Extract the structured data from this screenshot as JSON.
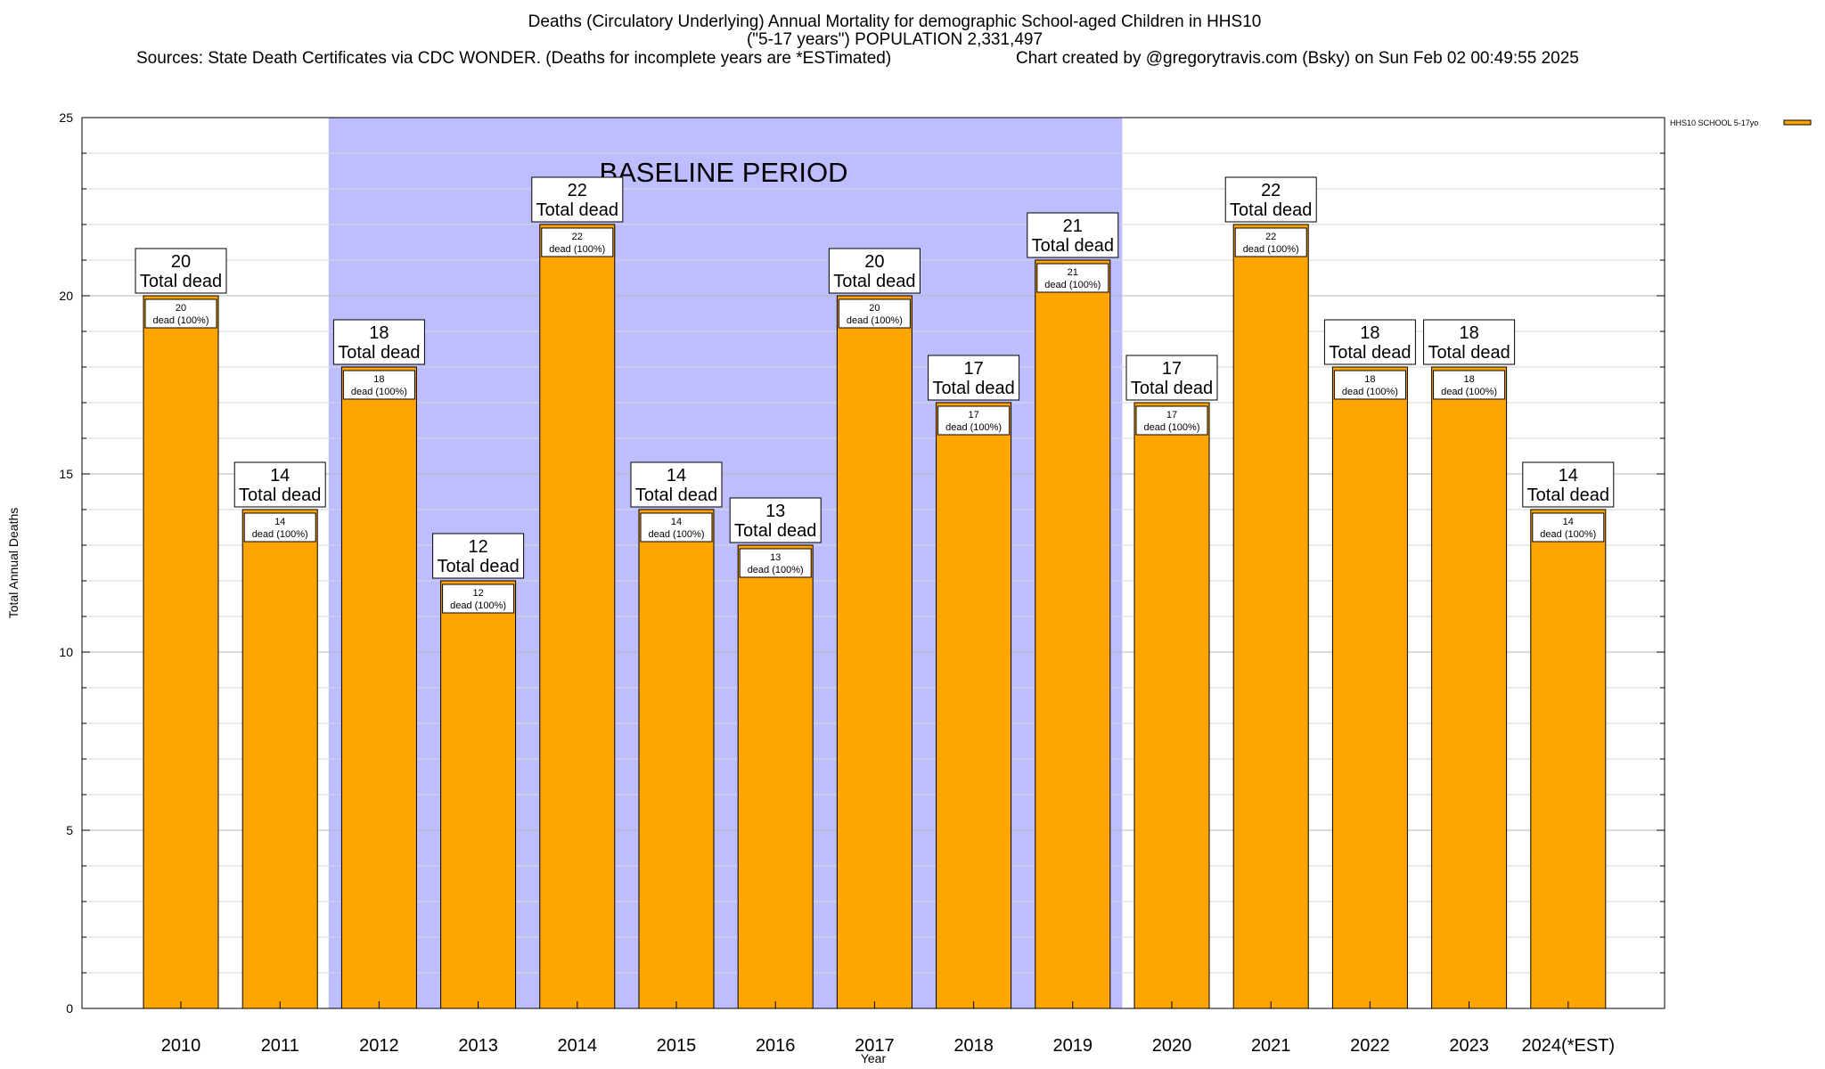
{
  "header": {
    "title_line1": "Deaths (Circulatory Underlying) Annual Mortality for demographic School-aged Children in HHS10",
    "title_line2": "(\"5-17 years\") POPULATION 2,331,497",
    "sources": "Sources: State Death Certificates via CDC WONDER. (Deaths for incomplete years are *ESTimated)",
    "credit": "Chart created by @gregorytravis.com (Bsky) on Sun Feb 02 00:49:55 2025"
  },
  "chart_data": {
    "type": "bar",
    "categories": [
      "2010",
      "2011",
      "2012",
      "2013",
      "2014",
      "2015",
      "2016",
      "2017",
      "2018",
      "2019",
      "2020",
      "2021",
      "2022",
      "2023",
      "2024(*EST)"
    ],
    "series": [
      {
        "name": "HHS10 SCHOOL 5-17yo",
        "values": [
          20,
          14,
          18,
          12,
          22,
          14,
          13,
          20,
          17,
          21,
          17,
          22,
          18,
          18,
          14
        ],
        "color": "#FFA500"
      }
    ],
    "title": "Deaths (Circulatory Underlying) Annual Mortality for demographic School-aged Children in HHS10",
    "xlabel": "Year",
    "ylabel": "Total Annual Deaths",
    "ylim": [
      0,
      25
    ],
    "yticks": [
      0,
      5,
      10,
      15,
      20,
      25
    ],
    "grid": true,
    "legend_position": "top-right",
    "total_label_word": "Total dead",
    "inner_label_suffix": "dead (100%)",
    "baseline": {
      "label": "BASELINE PERIOD",
      "from": "2012",
      "to": "2019",
      "color": "#BDBDFF"
    }
  }
}
